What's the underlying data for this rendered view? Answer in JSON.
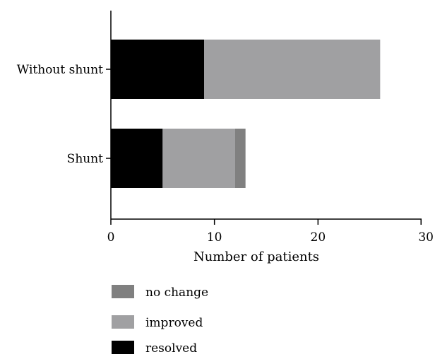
{
  "chart_data": {
    "type": "bar",
    "orientation": "horizontal",
    "stacked": true,
    "categories": [
      "Without shunt",
      "Shunt"
    ],
    "series": [
      {
        "name": "resolved",
        "values": [
          9,
          5
        ],
        "color": "#000000"
      },
      {
        "name": "improved",
        "values": [
          17,
          7
        ],
        "color": "#a0a0a2"
      },
      {
        "name": "no change",
        "values": [
          0,
          1
        ],
        "color": "#808080"
      }
    ],
    "xlabel": "Number of patients",
    "ylabel": "",
    "xlim": [
      0,
      30
    ],
    "xticks": [
      0,
      10,
      20,
      30
    ],
    "xtick_labels": [
      "0",
      "10",
      "20",
      "30"
    ],
    "grid": false,
    "legend_order": [
      "no change",
      "improved",
      "resolved"
    ],
    "legend_position": "bottom-left"
  }
}
